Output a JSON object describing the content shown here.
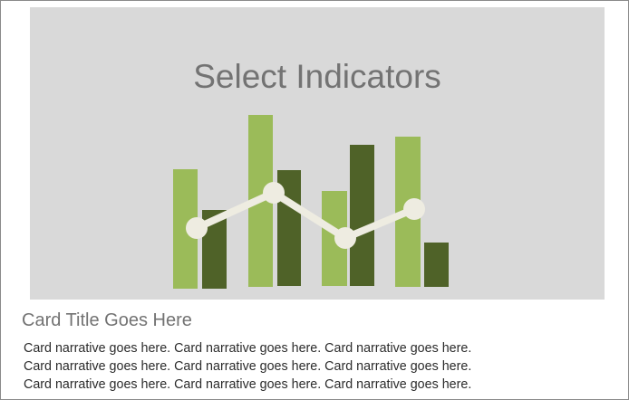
{
  "placeholder": {
    "title": "Select Indicators",
    "icon": "bar-line-chart-icon",
    "colors": {
      "background": "#d9d9d9",
      "bar_light": "#9bbb59",
      "bar_dark": "#4f6228",
      "line": "#eeece1"
    }
  },
  "card": {
    "title": "Card Title Goes Here",
    "narrative_lines": [
      "Card narrative goes here. Card narrative goes here. Card narrative goes here.",
      "Card narrative goes here. Card narrative goes here. Card narrative goes here.",
      "Card narrative goes here. Card narrative goes here. Card narrative goes here."
    ]
  }
}
